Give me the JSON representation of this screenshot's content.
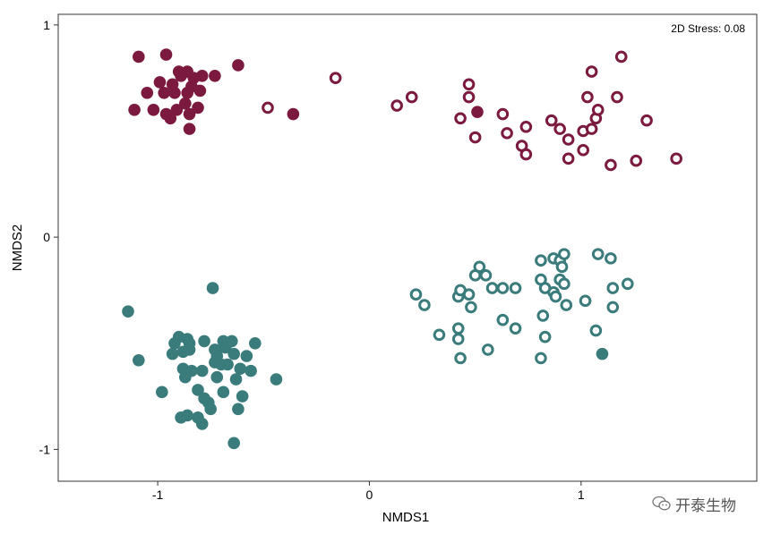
{
  "chart_data": {
    "type": "scatter",
    "xlabel": "NMDS1",
    "ylabel": "NMDS2",
    "xlim": [
      -1.47,
      1.83
    ],
    "ylim": [
      -1.15,
      1.05
    ],
    "xticks": [
      -1,
      0,
      1
    ],
    "yticks": [
      -1,
      0,
      1
    ],
    "x_tick_labels": [
      "-1",
      "0",
      "1"
    ],
    "y_tick_labels": [
      "-1",
      "0",
      "1"
    ],
    "annotation": "2D Stress: 0.08",
    "grid": false,
    "series": [
      {
        "color": "#7b1a3e",
        "marker": "filled-circle",
        "points": [
          [
            -1.09,
            0.85
          ],
          [
            -0.96,
            0.86
          ],
          [
            -0.9,
            0.78
          ],
          [
            -0.86,
            0.78
          ],
          [
            -0.79,
            0.76
          ],
          [
            -0.62,
            0.81
          ],
          [
            -0.89,
            0.76
          ],
          [
            -0.83,
            0.75
          ],
          [
            -0.73,
            0.76
          ],
          [
            -0.99,
            0.73
          ],
          [
            -0.93,
            0.72
          ],
          [
            -1.05,
            0.68
          ],
          [
            -0.97,
            0.68
          ],
          [
            -0.92,
            0.68
          ],
          [
            -0.86,
            0.68
          ],
          [
            -0.84,
            0.71
          ],
          [
            -0.8,
            0.69
          ],
          [
            -0.87,
            0.63
          ],
          [
            -0.91,
            0.6
          ],
          [
            -1.11,
            0.6
          ],
          [
            -1.02,
            0.6
          ],
          [
            -0.96,
            0.58
          ],
          [
            -0.94,
            0.56
          ],
          [
            -0.85,
            0.58
          ],
          [
            -0.81,
            0.61
          ],
          [
            -0.85,
            0.51
          ],
          [
            -0.36,
            0.58
          ],
          [
            0.51,
            0.59
          ]
        ]
      },
      {
        "color": "#7b1a3e",
        "marker": "open-circle",
        "points": [
          [
            -0.48,
            0.61
          ],
          [
            -0.16,
            0.75
          ],
          [
            0.13,
            0.62
          ],
          [
            0.2,
            0.66
          ],
          [
            0.47,
            0.72
          ],
          [
            0.47,
            0.66
          ],
          [
            0.43,
            0.56
          ],
          [
            0.5,
            0.47
          ],
          [
            0.63,
            0.58
          ],
          [
            0.65,
            0.49
          ],
          [
            0.74,
            0.52
          ],
          [
            0.72,
            0.43
          ],
          [
            0.74,
            0.39
          ],
          [
            0.86,
            0.55
          ],
          [
            0.9,
            0.51
          ],
          [
            0.94,
            0.46
          ],
          [
            0.94,
            0.37
          ],
          [
            1.01,
            0.41
          ],
          [
            1.01,
            0.5
          ],
          [
            1.03,
            0.66
          ],
          [
            1.05,
            0.78
          ],
          [
            1.05,
            0.51
          ],
          [
            1.07,
            0.56
          ],
          [
            1.08,
            0.6
          ],
          [
            1.14,
            0.34
          ],
          [
            1.17,
            0.66
          ],
          [
            1.19,
            0.85
          ],
          [
            1.26,
            0.36
          ],
          [
            1.31,
            0.55
          ],
          [
            1.45,
            0.37
          ]
        ]
      },
      {
        "color": "#3a7b7b",
        "marker": "filled-circle",
        "points": [
          [
            -1.14,
            -0.35
          ],
          [
            -1.09,
            -0.58
          ],
          [
            -0.74,
            -0.24
          ],
          [
            -0.9,
            -0.47
          ],
          [
            -0.86,
            -0.48
          ],
          [
            -0.92,
            -0.5
          ],
          [
            -0.85,
            -0.5
          ],
          [
            -0.78,
            -0.49
          ],
          [
            -0.69,
            -0.49
          ],
          [
            -0.65,
            -0.49
          ],
          [
            -0.93,
            -0.55
          ],
          [
            -0.88,
            -0.54
          ],
          [
            -0.85,
            -0.53
          ],
          [
            -0.73,
            -0.53
          ],
          [
            -0.68,
            -0.52
          ],
          [
            -0.54,
            -0.5
          ],
          [
            -0.72,
            -0.56
          ],
          [
            -0.64,
            -0.55
          ],
          [
            -0.58,
            -0.56
          ],
          [
            -0.88,
            -0.62
          ],
          [
            -0.84,
            -0.63
          ],
          [
            -0.79,
            -0.63
          ],
          [
            -0.73,
            -0.59
          ],
          [
            -0.7,
            -0.6
          ],
          [
            -0.67,
            -0.6
          ],
          [
            -0.61,
            -0.62
          ],
          [
            -0.56,
            -0.63
          ],
          [
            -0.87,
            -0.66
          ],
          [
            -0.72,
            -0.66
          ],
          [
            -0.63,
            -0.67
          ],
          [
            -0.44,
            -0.67
          ],
          [
            -0.98,
            -0.73
          ],
          [
            -0.81,
            -0.72
          ],
          [
            -0.69,
            -0.73
          ],
          [
            -0.78,
            -0.76
          ],
          [
            -0.76,
            -0.78
          ],
          [
            -0.6,
            -0.75
          ],
          [
            -0.75,
            -0.81
          ],
          [
            -0.62,
            -0.81
          ],
          [
            -0.86,
            -0.84
          ],
          [
            -0.89,
            -0.85
          ],
          [
            -0.81,
            -0.85
          ],
          [
            -0.79,
            -0.88
          ],
          [
            -0.64,
            -0.97
          ]
        ]
      },
      {
        "color": "#3a7b7b",
        "marker": "open-circle",
        "points": [
          [
            0.22,
            -0.27
          ],
          [
            0.26,
            -0.32
          ],
          [
            0.33,
            -0.46
          ],
          [
            0.42,
            -0.28
          ],
          [
            0.43,
            -0.25
          ],
          [
            0.47,
            -0.27
          ],
          [
            0.48,
            -0.33
          ],
          [
            0.42,
            -0.43
          ],
          [
            0.42,
            -0.48
          ],
          [
            0.43,
            -0.57
          ],
          [
            0.52,
            -0.14
          ],
          [
            0.5,
            -0.18
          ],
          [
            0.55,
            -0.18
          ],
          [
            0.58,
            -0.24
          ],
          [
            0.63,
            -0.24
          ],
          [
            0.69,
            -0.24
          ],
          [
            0.63,
            -0.39
          ],
          [
            0.69,
            -0.43
          ],
          [
            0.56,
            -0.53
          ],
          [
            0.81,
            -0.11
          ],
          [
            0.81,
            -0.2
          ],
          [
            0.83,
            -0.24
          ],
          [
            0.87,
            -0.26
          ],
          [
            0.82,
            -0.37
          ],
          [
            0.83,
            -0.47
          ],
          [
            0.81,
            -0.57
          ],
          [
            0.87,
            -0.1
          ],
          [
            0.9,
            -0.11
          ],
          [
            0.91,
            -0.14
          ],
          [
            0.92,
            -0.08
          ],
          [
            0.9,
            -0.2
          ],
          [
            0.92,
            -0.22
          ],
          [
            0.88,
            -0.28
          ],
          [
            0.93,
            -0.32
          ],
          [
            1.02,
            -0.3
          ],
          [
            1.08,
            -0.08
          ],
          [
            1.14,
            -0.1
          ],
          [
            1.15,
            -0.33
          ],
          [
            1.15,
            -0.24
          ],
          [
            1.22,
            -0.22
          ],
          [
            1.07,
            -0.44
          ]
        ]
      },
      {
        "color": "#3a7b7b",
        "marker": "filled-circle",
        "points": [
          [
            1.1,
            -0.55
          ]
        ]
      }
    ]
  },
  "watermark": {
    "text": "开泰生物",
    "icon": "wechat-icon"
  }
}
